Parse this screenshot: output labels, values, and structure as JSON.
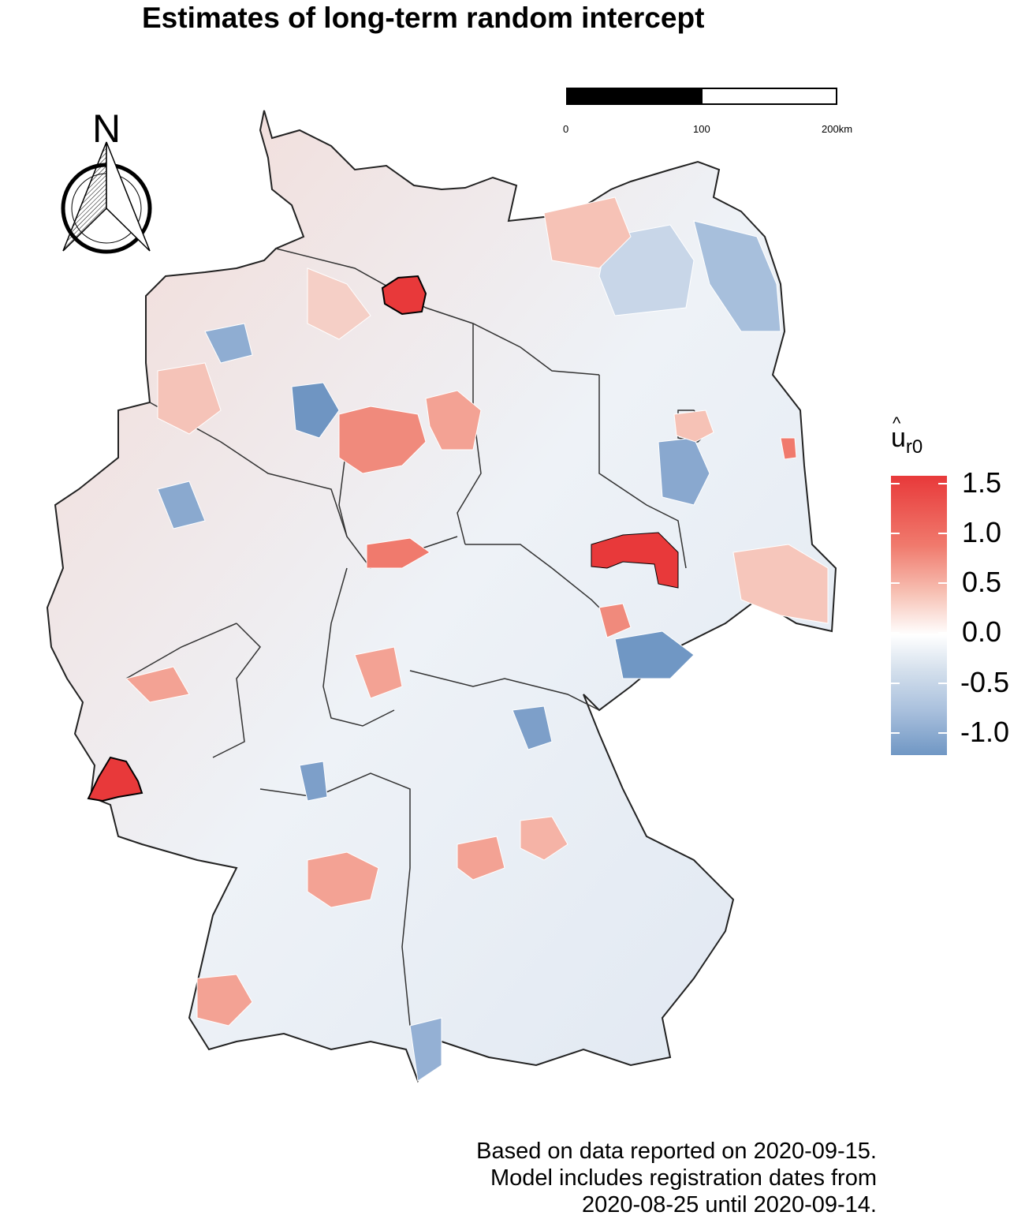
{
  "map": {
    "title": "Estimates of long-term random intercept",
    "north_label": "N",
    "legend": {
      "symbol": "u",
      "accent": "^",
      "subscript": "r0",
      "ticks": [
        "1.5",
        "1.0",
        "0.5",
        "0.0",
        "-0.5",
        "-1.0"
      ],
      "colors": {
        "high": "#e8393a",
        "mid": "#ffffff",
        "low": "#7097c4"
      }
    },
    "scale_bar": {
      "labels": [
        "0",
        "100",
        "200km"
      ]
    },
    "caption_lines": [
      "Based on data reported on 2020-09-15.",
      "Model includes registration dates from",
      "2020-08-25 until 2020-09-14."
    ]
  }
}
